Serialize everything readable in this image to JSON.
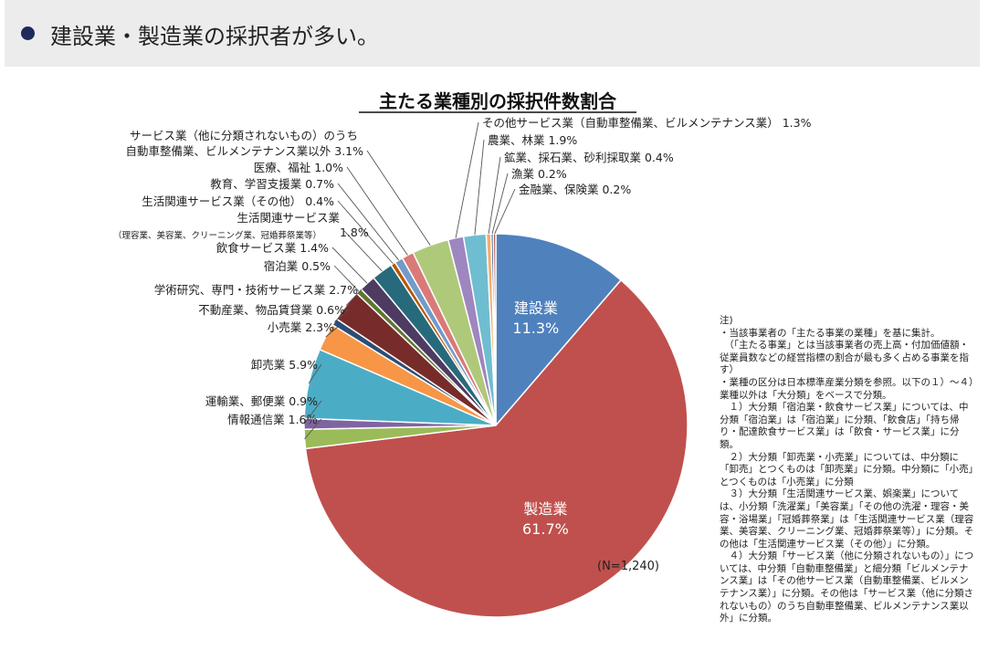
{
  "header": {
    "text": "建設業・製造業の採択者が多い。"
  },
  "chart_data": {
    "type": "pie",
    "title": "主たる業種別の採択件数割合",
    "n_label": "(N=1,240)",
    "start": "12 o'clock",
    "direction": "clockwise",
    "slices": [
      {
        "name": "建設業",
        "value": 11.3,
        "label_lines": [
          "建設業",
          "11.3%"
        ],
        "color": "#4f81bd",
        "label_inside": true
      },
      {
        "name": "製造業",
        "value": 61.7,
        "label_lines": [
          "製造業",
          "61.7%"
        ],
        "color": "#c0504d",
        "label_inside": true
      },
      {
        "name": "情報通信業",
        "value": 1.6,
        "label_lines": [
          "情報通信業 1.6％"
        ],
        "color": "#9bbb59"
      },
      {
        "name": "運輸業、郵便業",
        "value": 0.9,
        "label_lines": [
          "運輸業、郵便業 0.9%"
        ],
        "color": "#8064a2"
      },
      {
        "name": "卸売業",
        "value": 5.9,
        "label_lines": [
          "卸売業 5.9%"
        ],
        "color": "#4bacc6"
      },
      {
        "name": "小売業",
        "value": 2.3,
        "label_lines": [
          "小売業 2.3%"
        ],
        "color": "#f79646"
      },
      {
        "name": "不動産業、物品賃貸業",
        "value": 0.6,
        "label_lines": [
          "不動産業、物品賃貸業 0.6%"
        ],
        "color": "#2c4d75"
      },
      {
        "name": "学術研究、専門・技術サービス業",
        "value": 2.7,
        "label_lines": [
          "学術研究、専門・技術サービス業 2.7%"
        ],
        "color": "#772c2a"
      },
      {
        "name": "宿泊業",
        "value": 0.5,
        "label_lines": [
          "宿泊業 0.5%"
        ],
        "color": "#5f7530"
      },
      {
        "name": "飲食サービス業",
        "value": 1.4,
        "label_lines": [
          "飲食サービス業 1.4%"
        ],
        "color": "#4d3b62"
      },
      {
        "name": "生活関連サービス業（理容業、美容業、クリーニング業、冠婚葬祭業等）",
        "value": 1.8,
        "label_lines": [
          "生活関連サービス業",
          "（理容業、美容業、クリーニング業、冠婚葬祭業等）",
          "1.8%"
        ],
        "color": "#276a7c"
      },
      {
        "name": "生活関連サービス業（その他）",
        "value": 0.4,
        "label_lines": [
          "生活関連サービス業（その他） 0.4%"
        ],
        "color": "#b65708"
      },
      {
        "name": "教育、学習支援業",
        "value": 0.7,
        "label_lines": [
          "教育、学習支援業 0.7%"
        ],
        "color": "#729aca"
      },
      {
        "name": "医療、福祉",
        "value": 1.0,
        "label_lines": [
          "医療、福祉 1.0%"
        ],
        "color": "#d97a78"
      },
      {
        "name": "サービス業（他に分類されないもの）のうち自動車整備業、ビルメンテナンス業以外",
        "value": 3.1,
        "label_lines": [
          "サービス業（他に分類されないもの）のうち",
          "自動車整備業、ビルメンテナンス業以外 3.1%"
        ],
        "color": "#afc97a"
      },
      {
        "name": "その他サービス業（自動車整備業、ビルメンテナンス業）",
        "value": 1.3,
        "label_lines": [
          "その他サービス業（自動車整備業、ビルメンテナンス業） 1.3%"
        ],
        "color": "#9e86c0"
      },
      {
        "name": "農業、林業",
        "value": 1.9,
        "label_lines": [
          "農業、林業 1.9%"
        ],
        "color": "#6fbdd1"
      },
      {
        "name": "鉱業、採石業、砂利採取業",
        "value": 0.4,
        "label_lines": [
          "鉱業、採石業、砂利採取業 0.4%"
        ],
        "color": "#f9ab6c"
      },
      {
        "name": "漁業",
        "value": 0.2,
        "label_lines": [
          "漁業 0.2%"
        ],
        "color": "#3a5c8a"
      },
      {
        "name": "金融業、保険業",
        "value": 0.2,
        "label_lines": [
          "金融業、保険業 0.2%"
        ],
        "color": "#a33c3a"
      }
    ]
  },
  "notes": [
    "注)",
    "・当該事業者の「主たる事業の業種」を基に集計。",
    "　（「主たる事業」とは当該事業者の売上高・付加価値額・従業員数などの経営指標の割合が最も多く占める事業を指す）",
    "・業種の区分は日本標準産業分類を参照。以下の１）～４）業種以外は「大分類」をベースで分類。",
    "　１）大分類「宿泊業・飲食サービス業」については、中分類「宿泊業」は「宿泊業」に分類、「飲食店」「持ち帰り・配達飲食サービス業」は「飲食・サービス業」に分類。",
    "　２）大分類「卸売業・小売業」については、中分類に「卸売」とつくものは「卸売業」に分類。中分類に「小売」とつくものは「小売業」に分類",
    "　３）大分類「生活関連サービス業、娯楽業」については、小分類「洗濯業」「美容業」「その他の洗濯・理容・美容・浴場業」「冠婚葬祭業」は「生活関連サービス業（理容業、美容業、クリーニング業、冠婚葬祭業等）」に分類。その他は「生活関連サービス業（その他）」に分類。",
    "　４）大分類「サービス業（他に分類されないもの）」については、中分類「自動車整備業」と細分類「ビルメンテナンス業」は「その他サービス業（自動車整備業、ビルメンテナンス業）」に分類。その他は「サービス業（他に分類されないもの）のうち自動車整備業、ビルメンテナンス業以外」に分類。"
  ]
}
